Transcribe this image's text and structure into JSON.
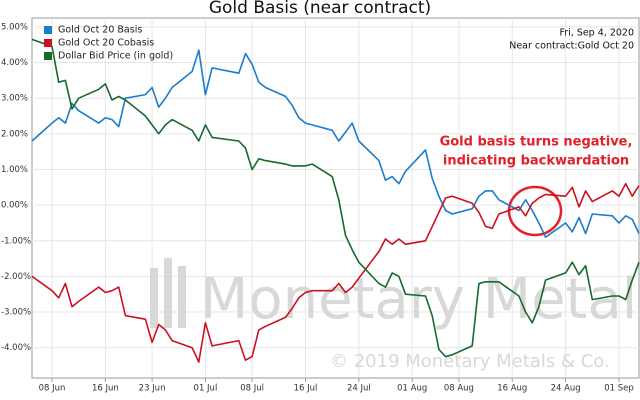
{
  "chart_data": {
    "type": "line",
    "title": "Gold Basis (near contract)",
    "annotations": [
      "Fri, Sep 4, 2020",
      "Near contract:Gold Oct 20",
      "Gold basis turns negative,",
      "indicating backwardation",
      "Monetary Metals",
      "© 2019 Monetary Metals & Co."
    ],
    "x": [
      "2020-06-05",
      "2020-06-08",
      "2020-06-09",
      "2020-06-10",
      "2020-06-11",
      "2020-06-12",
      "2020-06-15",
      "2020-06-16",
      "2020-06-17",
      "2020-06-18",
      "2020-06-19",
      "2020-06-22",
      "2020-06-23",
      "2020-06-24",
      "2020-06-25",
      "2020-06-26",
      "2020-06-29",
      "2020-06-30",
      "2020-07-01",
      "2020-07-02",
      "2020-07-06",
      "2020-07-07",
      "2020-07-08",
      "2020-07-09",
      "2020-07-10",
      "2020-07-13",
      "2020-07-14",
      "2020-07-15",
      "2020-07-16",
      "2020-07-17",
      "2020-07-20",
      "2020-07-21",
      "2020-07-22",
      "2020-07-23",
      "2020-07-24",
      "2020-07-27",
      "2020-07-28",
      "2020-07-29",
      "2020-07-30",
      "2020-07-31",
      "2020-08-03",
      "2020-08-04",
      "2020-08-05",
      "2020-08-06",
      "2020-08-07",
      "2020-08-10",
      "2020-08-11",
      "2020-08-12",
      "2020-08-13",
      "2020-08-14",
      "2020-08-17",
      "2020-08-18",
      "2020-08-19",
      "2020-08-20",
      "2020-08-21",
      "2020-08-24",
      "2020-08-25",
      "2020-08-26",
      "2020-08-27",
      "2020-08-28",
      "2020-08-31",
      "2020-09-01",
      "2020-09-02",
      "2020-09-03",
      "2020-09-04"
    ],
    "series": [
      {
        "name": "Gold Oct 20 Basis",
        "color": "#1c7ccc",
        "values": [
          1.8,
          2.3,
          2.45,
          2.3,
          2.85,
          2.65,
          2.3,
          2.45,
          2.4,
          2.2,
          3.0,
          3.1,
          3.3,
          2.75,
          3.0,
          3.3,
          3.75,
          4.35,
          3.1,
          3.85,
          3.7,
          4.25,
          3.95,
          3.45,
          3.3,
          3.05,
          2.8,
          2.45,
          2.3,
          2.25,
          2.1,
          1.8,
          2.05,
          2.3,
          1.8,
          1.25,
          0.7,
          0.8,
          0.6,
          0.95,
          1.55,
          0.75,
          0.25,
          -0.15,
          -0.25,
          -0.1,
          0.25,
          0.4,
          0.4,
          0.15,
          -0.15,
          0.15,
          -0.15,
          -0.5,
          -0.9,
          -0.5,
          -0.75,
          -0.35,
          -0.8,
          -0.25,
          -0.3,
          -0.5,
          -0.3,
          -0.4,
          -0.8
        ]
      },
      {
        "name": "Gold Oct 20 Cobasis",
        "color": "#cc1020",
        "values": [
          -2.0,
          -2.4,
          -2.6,
          -2.2,
          -2.85,
          -2.7,
          -2.3,
          -2.45,
          -2.4,
          -2.3,
          -3.1,
          -3.2,
          -3.85,
          -3.35,
          -3.5,
          -3.8,
          -4.0,
          -4.4,
          -3.3,
          -3.95,
          -3.8,
          -4.35,
          -4.25,
          -3.5,
          -3.4,
          -3.15,
          -2.9,
          -2.6,
          -2.45,
          -2.4,
          -2.4,
          -2.2,
          -2.45,
          -2.3,
          -2.05,
          -1.3,
          -0.95,
          -1.1,
          -0.95,
          -1.1,
          -1.0,
          -0.6,
          -0.2,
          0.2,
          0.25,
          0.05,
          -0.2,
          -0.6,
          -0.65,
          -0.25,
          -0.05,
          -0.3,
          0.05,
          0.2,
          0.3,
          0.25,
          0.5,
          -0.05,
          0.4,
          0.1,
          0.4,
          0.25,
          0.6,
          0.25,
          0.55
        ]
      },
      {
        "name": "Dollar Bid Price (in gold)",
        "color": "#17692c",
        "values": [
          4.65,
          4.45,
          3.45,
          3.5,
          2.7,
          3.0,
          3.25,
          3.4,
          2.95,
          3.05,
          2.95,
          2.5,
          2.25,
          2.0,
          2.25,
          2.4,
          2.1,
          1.8,
          2.25,
          1.9,
          1.8,
          1.6,
          1.0,
          1.3,
          1.25,
          1.15,
          1.1,
          1.1,
          1.1,
          1.15,
          0.8,
          0.15,
          -0.85,
          -1.25,
          -1.6,
          -2.2,
          -2.3,
          -1.9,
          -2.0,
          -2.5,
          -2.55,
          -3.1,
          -4.05,
          -4.25,
          -4.2,
          -3.95,
          -2.2,
          -2.15,
          -2.15,
          -2.15,
          -2.55,
          -3.0,
          -3.3,
          -2.85,
          -2.1,
          -1.9,
          -1.6,
          -1.95,
          -1.7,
          -2.65,
          -2.55,
          -2.55,
          -2.65,
          -2.1,
          -1.6
        ]
      }
    ],
    "xlim": [
      "2020-06-05",
      "2020-09-04"
    ],
    "xticks": [
      {
        "value": "2020-06-08",
        "label": "08 Jun"
      },
      {
        "value": "2020-06-16",
        "label": "16 Jun"
      },
      {
        "value": "2020-06-23",
        "label": "23 Jun"
      },
      {
        "value": "2020-07-01",
        "label": "01 Jul"
      },
      {
        "value": "2020-07-08",
        "label": "08 Jul"
      },
      {
        "value": "2020-07-16",
        "label": "16 Jul"
      },
      {
        "value": "2020-07-24",
        "label": "24 Jul"
      },
      {
        "value": "2020-08-01",
        "label": "01 Aug"
      },
      {
        "value": "2020-08-08",
        "label": "08 Aug"
      },
      {
        "value": "2020-08-16",
        "label": "16 Aug"
      },
      {
        "value": "2020-08-24",
        "label": "24 Aug"
      },
      {
        "value": "2020-09-01",
        "label": "01 Sep"
      }
    ],
    "ylim": [
      -4.85,
      5.25
    ],
    "yticks": [
      {
        "value": -4,
        "label": "-4.00%"
      },
      {
        "value": -3,
        "label": "-3.00%"
      },
      {
        "value": -2,
        "label": "-2.00%"
      },
      {
        "value": -1,
        "label": "-1.00%"
      },
      {
        "value": 0,
        "label": "0.00%"
      },
      {
        "value": 1,
        "label": "1.00%"
      },
      {
        "value": 2,
        "label": "2.00%"
      },
      {
        "value": 3,
        "label": "3.00%"
      },
      {
        "value": 4,
        "label": "4.00%"
      },
      {
        "value": 5,
        "label": "5.00%"
      }
    ],
    "grid": true,
    "legend": "top-left"
  }
}
